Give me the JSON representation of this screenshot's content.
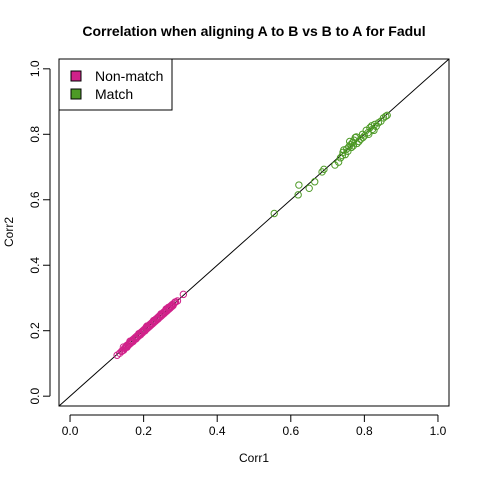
{
  "chart_data": {
    "type": "scatter",
    "title": "Correlation when aligning A to B vs B to A for Fadul",
    "xlabel": "Corr1",
    "ylabel": "Corr2",
    "xlim": [
      -0.03,
      1.03
    ],
    "ylim": [
      -0.03,
      1.03
    ],
    "xticks": [
      "0.0",
      "0.2",
      "0.4",
      "0.6",
      "0.8",
      "1.0"
    ],
    "yticks": [
      "0.0",
      "0.2",
      "0.4",
      "0.6",
      "0.8",
      "1.0"
    ],
    "reference_line": "y = x",
    "grid": false,
    "legend_position": "top-left",
    "series": [
      {
        "name": "Non-match",
        "color": "#d0228a",
        "marker": "open-circle",
        "points": [
          [
            0.128,
            0.125
          ],
          [
            0.135,
            0.131
          ],
          [
            0.14,
            0.137
          ],
          [
            0.143,
            0.139
          ],
          [
            0.146,
            0.141
          ],
          [
            0.148,
            0.146
          ],
          [
            0.15,
            0.148
          ],
          [
            0.152,
            0.149
          ],
          [
            0.154,
            0.155
          ],
          [
            0.156,
            0.153
          ],
          [
            0.158,
            0.158
          ],
          [
            0.16,
            0.157
          ],
          [
            0.162,
            0.163
          ],
          [
            0.164,
            0.161
          ],
          [
            0.166,
            0.167
          ],
          [
            0.168,
            0.165
          ],
          [
            0.17,
            0.172
          ],
          [
            0.172,
            0.168
          ],
          [
            0.174,
            0.176
          ],
          [
            0.176,
            0.173
          ],
          [
            0.178,
            0.18
          ],
          [
            0.18,
            0.176
          ],
          [
            0.182,
            0.184
          ],
          [
            0.184,
            0.181
          ],
          [
            0.186,
            0.188
          ],
          [
            0.188,
            0.185
          ],
          [
            0.19,
            0.192
          ],
          [
            0.192,
            0.188
          ],
          [
            0.194,
            0.196
          ],
          [
            0.196,
            0.193
          ],
          [
            0.198,
            0.2
          ],
          [
            0.2,
            0.197
          ],
          [
            0.202,
            0.204
          ],
          [
            0.204,
            0.2
          ],
          [
            0.206,
            0.208
          ],
          [
            0.208,
            0.205
          ],
          [
            0.21,
            0.212
          ],
          [
            0.212,
            0.209
          ],
          [
            0.214,
            0.216
          ],
          [
            0.216,
            0.213
          ],
          [
            0.218,
            0.22
          ],
          [
            0.22,
            0.217
          ],
          [
            0.222,
            0.224
          ],
          [
            0.224,
            0.221
          ],
          [
            0.226,
            0.228
          ],
          [
            0.228,
            0.225
          ],
          [
            0.23,
            0.232
          ],
          [
            0.232,
            0.229
          ],
          [
            0.234,
            0.236
          ],
          [
            0.236,
            0.233
          ],
          [
            0.238,
            0.24
          ],
          [
            0.24,
            0.237
          ],
          [
            0.242,
            0.244
          ],
          [
            0.244,
            0.241
          ],
          [
            0.246,
            0.248
          ],
          [
            0.248,
            0.245
          ],
          [
            0.25,
            0.252
          ],
          [
            0.252,
            0.249
          ],
          [
            0.254,
            0.256
          ],
          [
            0.256,
            0.253
          ],
          [
            0.258,
            0.26
          ],
          [
            0.26,
            0.257
          ],
          [
            0.262,
            0.264
          ],
          [
            0.264,
            0.261
          ],
          [
            0.266,
            0.268
          ],
          [
            0.268,
            0.265
          ],
          [
            0.27,
            0.272
          ],
          [
            0.272,
            0.269
          ],
          [
            0.274,
            0.276
          ],
          [
            0.276,
            0.273
          ],
          [
            0.278,
            0.28
          ],
          [
            0.28,
            0.277
          ],
          [
            0.283,
            0.284
          ],
          [
            0.287,
            0.288
          ],
          [
            0.292,
            0.291
          ],
          [
            0.308,
            0.311
          ],
          [
            0.155,
            0.15
          ],
          [
            0.163,
            0.168
          ],
          [
            0.171,
            0.167
          ],
          [
            0.187,
            0.191
          ],
          [
            0.197,
            0.194
          ],
          [
            0.207,
            0.211
          ],
          [
            0.217,
            0.215
          ],
          [
            0.227,
            0.231
          ],
          [
            0.237,
            0.235
          ],
          [
            0.247,
            0.251
          ],
          [
            0.257,
            0.255
          ],
          [
            0.267,
            0.271
          ],
          [
            0.277,
            0.275
          ],
          [
            0.145,
            0.15
          ],
          [
            0.179,
            0.175
          ],
          [
            0.209,
            0.214
          ],
          [
            0.239,
            0.236
          ],
          [
            0.261,
            0.266
          ],
          [
            0.285,
            0.287
          ]
        ]
      },
      {
        "name": "Match",
        "color": "#4d9a26",
        "marker": "open-circle",
        "points": [
          [
            0.555,
            0.558
          ],
          [
            0.62,
            0.615
          ],
          [
            0.622,
            0.645
          ],
          [
            0.65,
            0.635
          ],
          [
            0.665,
            0.655
          ],
          [
            0.685,
            0.685
          ],
          [
            0.69,
            0.693
          ],
          [
            0.72,
            0.706
          ],
          [
            0.73,
            0.715
          ],
          [
            0.735,
            0.728
          ],
          [
            0.74,
            0.735
          ],
          [
            0.742,
            0.745
          ],
          [
            0.748,
            0.738
          ],
          [
            0.752,
            0.755
          ],
          [
            0.755,
            0.748
          ],
          [
            0.758,
            0.762
          ],
          [
            0.762,
            0.768
          ],
          [
            0.765,
            0.76
          ],
          [
            0.768,
            0.775
          ],
          [
            0.77,
            0.765
          ],
          [
            0.772,
            0.782
          ],
          [
            0.775,
            0.79
          ],
          [
            0.78,
            0.772
          ],
          [
            0.785,
            0.778
          ],
          [
            0.79,
            0.785
          ],
          [
            0.795,
            0.8
          ],
          [
            0.8,
            0.795
          ],
          [
            0.805,
            0.812
          ],
          [
            0.81,
            0.805
          ],
          [
            0.815,
            0.82
          ],
          [
            0.82,
            0.826
          ],
          [
            0.822,
            0.815
          ],
          [
            0.828,
            0.83
          ],
          [
            0.832,
            0.824
          ],
          [
            0.838,
            0.835
          ],
          [
            0.845,
            0.84
          ],
          [
            0.852,
            0.85
          ],
          [
            0.858,
            0.855
          ],
          [
            0.862,
            0.858
          ],
          [
            0.76,
            0.778
          ],
          [
            0.778,
            0.792
          ],
          [
            0.812,
            0.8
          ],
          [
            0.826,
            0.812
          ],
          [
            0.796,
            0.79
          ],
          [
            0.744,
            0.752
          ]
        ]
      }
    ]
  }
}
